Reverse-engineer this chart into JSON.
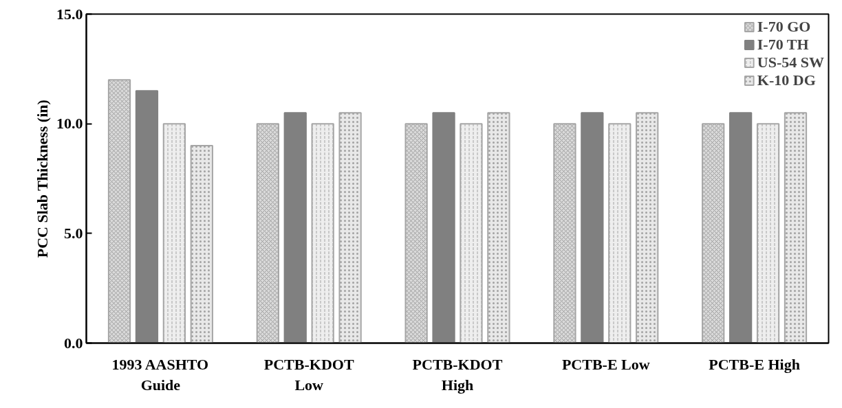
{
  "chart_data": {
    "type": "bar",
    "ylabel": "PCC Slab Thickness (in)",
    "categories": [
      "1993 AASHTO\nGuide",
      "PCTB-KDOT\nLow",
      "PCTB-KDOT\nHigh",
      "PCTB-E Low",
      "PCTB-E High"
    ],
    "series": [
      {
        "name": "I-70 GO",
        "color": "#d9d9d9",
        "values": [
          12.0,
          10.0,
          10.0,
          10.0,
          10.0
        ]
      },
      {
        "name": "I-70 TH",
        "color": "#808080",
        "values": [
          11.5,
          10.5,
          10.5,
          10.5,
          10.5
        ]
      },
      {
        "name": "US-54 SW",
        "color": "#eeeeee",
        "values": [
          10.0,
          10.0,
          10.0,
          10.0,
          10.0
        ]
      },
      {
        "name": "K-10 DG",
        "color": "#e8e8e8",
        "values": [
          9.0,
          10.5,
          10.5,
          10.5,
          10.5
        ]
      }
    ],
    "ylim": [
      0,
      15
    ],
    "yticks": [
      {
        "value": 0,
        "label": "0.0"
      },
      {
        "value": 5,
        "label": "5.0"
      },
      {
        "value": 10,
        "label": "10.0"
      },
      {
        "value": 15,
        "label": "15.0"
      }
    ],
    "grid": false,
    "legend": "top right"
  }
}
